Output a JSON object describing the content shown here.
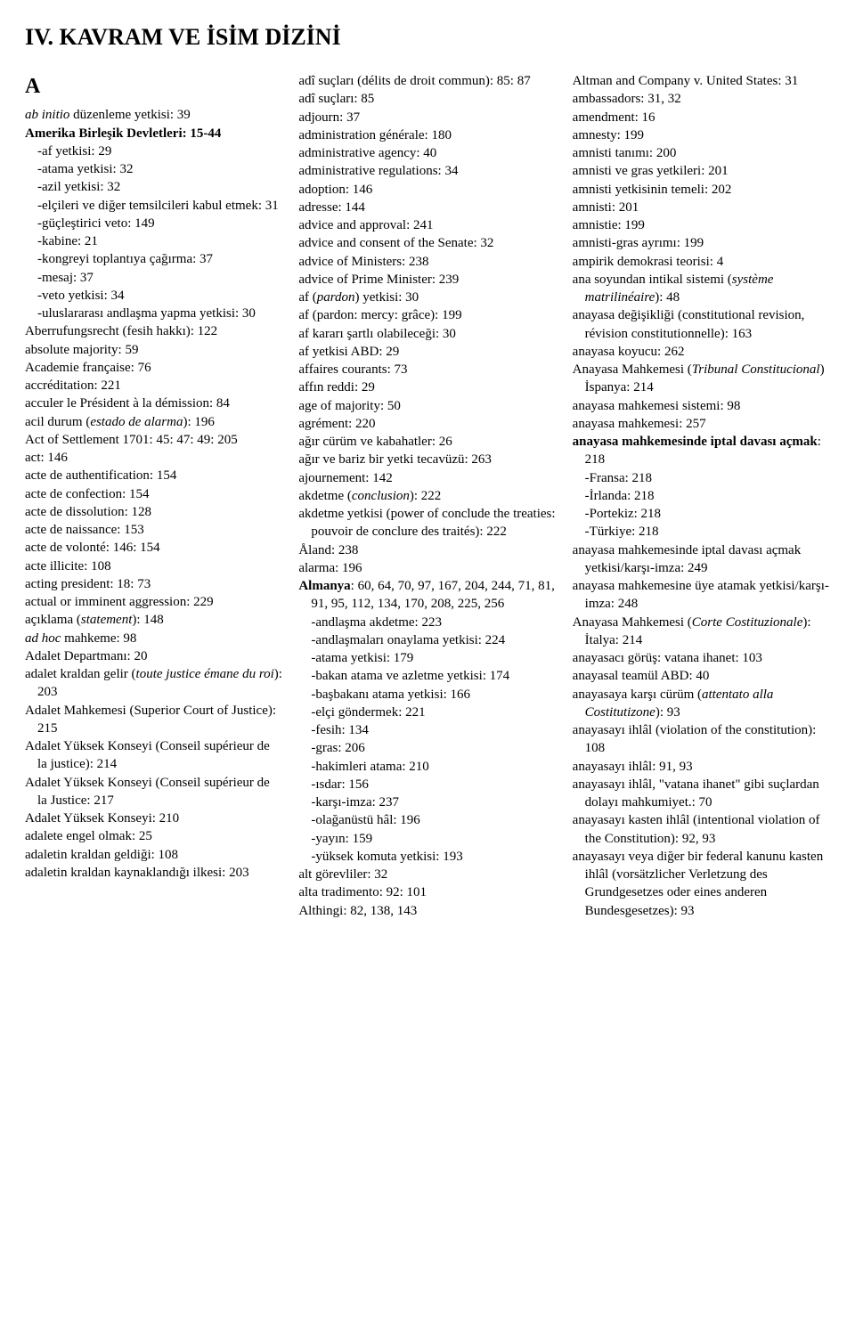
{
  "title": "IV. KAVRAM VE İSİM DİZİNİ",
  "section_letter": "A",
  "col1": [
    {
      "runs": [
        {
          "t": "ab initio",
          "s": "italic"
        },
        {
          "t": " düzenleme yetkisi: 39"
        }
      ]
    },
    {
      "runs": [
        {
          "t": "Amerika Birleşik Devletleri: 15-44",
          "s": "bold"
        }
      ]
    },
    {
      "runs": [
        {
          "t": "-af yetkisi: 29"
        }
      ],
      "sub": true
    },
    {
      "runs": [
        {
          "t": "-atama yetkisi: 32"
        }
      ],
      "sub": true
    },
    {
      "runs": [
        {
          "t": "-azil yetkisi: 32"
        }
      ],
      "sub": true
    },
    {
      "runs": [
        {
          "t": "-elçileri ve diğer temsilcileri kabul etmek: 31"
        }
      ],
      "sub": true
    },
    {
      "runs": [
        {
          "t": "-güçleştirici veto: 149"
        }
      ],
      "sub": true
    },
    {
      "runs": [
        {
          "t": "-kabine: 21"
        }
      ],
      "sub": true
    },
    {
      "runs": [
        {
          "t": "-kongreyi toplantıya çağırma: 37"
        }
      ],
      "sub": true
    },
    {
      "runs": [
        {
          "t": "-mesaj: 37"
        }
      ],
      "sub": true
    },
    {
      "runs": [
        {
          "t": "-veto yetkisi: 34"
        }
      ],
      "sub": true
    },
    {
      "runs": [
        {
          "t": "-uluslararası andlaşma yapma yetkisi: 30"
        }
      ],
      "sub": true
    },
    {
      "runs": [
        {
          "t": "Aberrufungsrecht (fesih hakkı): 122"
        }
      ]
    },
    {
      "runs": [
        {
          "t": "absolute majority: 59"
        }
      ]
    },
    {
      "runs": [
        {
          "t": "Academie française: 76"
        }
      ]
    },
    {
      "runs": [
        {
          "t": "accréditation: 221"
        }
      ]
    },
    {
      "runs": [
        {
          "t": "acculer le Président à la démission: 84"
        }
      ]
    },
    {
      "runs": [
        {
          "t": "acil durum ("
        },
        {
          "t": "estado de alarma",
          "s": "italic"
        },
        {
          "t": "): 196"
        }
      ]
    },
    {
      "runs": [
        {
          "t": "Act of Settlement 1701: 45: 47: 49: 205"
        }
      ]
    },
    {
      "runs": [
        {
          "t": "act: 146"
        }
      ]
    },
    {
      "runs": [
        {
          "t": "acte de authentification: 154"
        }
      ]
    },
    {
      "runs": [
        {
          "t": "acte de confection: 154"
        }
      ]
    },
    {
      "runs": [
        {
          "t": "acte de dissolution: 128"
        }
      ]
    },
    {
      "runs": [
        {
          "t": "acte de naissance: 153"
        }
      ]
    },
    {
      "runs": [
        {
          "t": "acte de volonté: 146: 154"
        }
      ]
    },
    {
      "runs": [
        {
          "t": "acte illicite: 108"
        }
      ]
    },
    {
      "runs": [
        {
          "t": "acting president: 18: 73"
        }
      ]
    },
    {
      "runs": [
        {
          "t": "actual or imminent aggression: 229"
        }
      ]
    },
    {
      "runs": [
        {
          "t": "açıklama ("
        },
        {
          "t": "statement",
          "s": "italic"
        },
        {
          "t": "): 148"
        }
      ]
    },
    {
      "runs": [
        {
          "t": "ad hoc",
          "s": "italic"
        },
        {
          "t": " mahkeme: 98"
        }
      ]
    },
    {
      "runs": [
        {
          "t": "Adalet Departmanı: 20"
        }
      ]
    },
    {
      "runs": [
        {
          "t": "adalet kraldan gelir ("
        },
        {
          "t": "toute justice émane du roi",
          "s": "italic"
        },
        {
          "t": "): 203"
        }
      ]
    },
    {
      "runs": [
        {
          "t": "Adalet Mahkemesi (Superior Court of Justice): 215"
        }
      ]
    },
    {
      "runs": [
        {
          "t": "Adalet Yüksek Konseyi (Conseil supérieur de la justice): 214"
        }
      ]
    },
    {
      "runs": [
        {
          "t": "Adalet Yüksek Konseyi (Conseil supérieur de la Justice: 217"
        }
      ]
    },
    {
      "runs": [
        {
          "t": "Adalet Yüksek Konseyi: 210"
        }
      ]
    },
    {
      "runs": [
        {
          "t": "adalete engel olmak: 25"
        }
      ]
    },
    {
      "runs": [
        {
          "t": "adaletin kraldan geldiği: 108"
        }
      ]
    },
    {
      "runs": [
        {
          "t": "adaletin kraldan kaynaklandığı ilkesi: 203"
        }
      ]
    }
  ],
  "col2": [
    {
      "runs": [
        {
          "t": "adî suçları (délits de droit commun): 85: 87"
        }
      ]
    },
    {
      "runs": [
        {
          "t": "adî suçları: 85"
        }
      ]
    },
    {
      "runs": [
        {
          "t": "adjourn: 37"
        }
      ]
    },
    {
      "runs": [
        {
          "t": "administration générale: 180"
        }
      ]
    },
    {
      "runs": [
        {
          "t": "administrative agency: 40"
        }
      ]
    },
    {
      "runs": [
        {
          "t": "administrative regulations: 34"
        }
      ]
    },
    {
      "runs": [
        {
          "t": "adoption: 146"
        }
      ]
    },
    {
      "runs": [
        {
          "t": "adresse: 144"
        }
      ]
    },
    {
      "runs": [
        {
          "t": "advice and approval: 241"
        }
      ]
    },
    {
      "runs": [
        {
          "t": "advice and consent of the Senate: 32"
        }
      ]
    },
    {
      "runs": [
        {
          "t": "advice of Ministers: 238"
        }
      ]
    },
    {
      "runs": [
        {
          "t": "advice of Prime Minister: 239"
        }
      ]
    },
    {
      "runs": [
        {
          "t": "af ("
        },
        {
          "t": "pardon",
          "s": "italic"
        },
        {
          "t": ") yetkisi: 30"
        }
      ]
    },
    {
      "runs": [
        {
          "t": "af (pardon: mercy: grâce): 199"
        }
      ]
    },
    {
      "runs": [
        {
          "t": "af kararı şartlı olabileceği: 30"
        }
      ]
    },
    {
      "runs": [
        {
          "t": "af yetkisi ABD: 29"
        }
      ]
    },
    {
      "runs": [
        {
          "t": "affaires courants: 73"
        }
      ]
    },
    {
      "runs": [
        {
          "t": "affın reddi: 29"
        }
      ]
    },
    {
      "runs": [
        {
          "t": "age of majority: 50"
        }
      ]
    },
    {
      "runs": [
        {
          "t": "agrément: 220"
        }
      ]
    },
    {
      "runs": [
        {
          "t": "ağır cürüm ve kabahatler: 26"
        }
      ]
    },
    {
      "runs": [
        {
          "t": "ağır ve bariz bir yetki tecavüzü: 263"
        }
      ]
    },
    {
      "runs": [
        {
          "t": "ajournement: 142"
        }
      ]
    },
    {
      "runs": [
        {
          "t": "akdetme ("
        },
        {
          "t": "conclusion",
          "s": "italic"
        },
        {
          "t": "): 222"
        }
      ]
    },
    {
      "runs": [
        {
          "t": "akdetme yetkisi (power of conclude the treaties: pouvoir de conclure des traités): 222"
        }
      ]
    },
    {
      "runs": [
        {
          "t": "Åland: 238"
        }
      ]
    },
    {
      "runs": [
        {
          "t": "alarma: 196"
        }
      ]
    },
    {
      "runs": [
        {
          "t": "Almanya",
          "s": "bold"
        },
        {
          "t": ": 60, 64, 70, 97, 167, 204, 244, 71, 81, 91, 95, 112, 134, 170, 208, 225, 256"
        }
      ]
    },
    {
      "runs": [
        {
          "t": "-andlaşma akdetme: 223"
        }
      ],
      "sub": true
    },
    {
      "runs": [
        {
          "t": "-andlaşmaları onaylama yetkisi: 224"
        }
      ],
      "sub": true
    },
    {
      "runs": [
        {
          "t": "-atama yetkisi: 179"
        }
      ],
      "sub": true
    },
    {
      "runs": [
        {
          "t": "-bakan atama ve azletme yetkisi: 174"
        }
      ],
      "sub": true
    },
    {
      "runs": [
        {
          "t": "-başbakanı atama yetkisi: 166"
        }
      ],
      "sub": true
    },
    {
      "runs": [
        {
          "t": "-elçi göndermek: 221"
        }
      ],
      "sub": true
    },
    {
      "runs": [
        {
          "t": "-fesih: 134"
        }
      ],
      "sub": true
    },
    {
      "runs": [
        {
          "t": "-gras: 206"
        }
      ],
      "sub": true
    },
    {
      "runs": [
        {
          "t": "-hakimleri atama: 210"
        }
      ],
      "sub": true
    },
    {
      "runs": [
        {
          "t": "-ısdar: 156"
        }
      ],
      "sub": true
    },
    {
      "runs": [
        {
          "t": "-karşı-imza: 237"
        }
      ],
      "sub": true
    },
    {
      "runs": [
        {
          "t": "-olağanüstü hâl: 196"
        }
      ],
      "sub": true
    },
    {
      "runs": [
        {
          "t": "-yayın: 159"
        }
      ],
      "sub": true
    },
    {
      "runs": [
        {
          "t": "-yüksek komuta yetkisi: 193"
        }
      ],
      "sub": true
    },
    {
      "runs": [
        {
          "t": "alt görevliler: 32"
        }
      ]
    },
    {
      "runs": [
        {
          "t": "alta tradimento: 92: 101"
        }
      ]
    },
    {
      "runs": [
        {
          "t": "Althingi: 82, 138, 143"
        }
      ]
    }
  ],
  "col3": [
    {
      "runs": [
        {
          "t": "Altman and Company v. United States: 31"
        }
      ]
    },
    {
      "runs": [
        {
          "t": "ambassadors: 31, 32"
        }
      ]
    },
    {
      "runs": [
        {
          "t": "amendment: 16"
        }
      ]
    },
    {
      "runs": [
        {
          "t": "amnesty: 199"
        }
      ]
    },
    {
      "runs": [
        {
          "t": "amnisti tanımı: 200"
        }
      ]
    },
    {
      "runs": [
        {
          "t": "amnisti ve gras yetkileri: 201"
        }
      ]
    },
    {
      "runs": [
        {
          "t": "amnisti yetkisinin temeli: 202"
        }
      ]
    },
    {
      "runs": [
        {
          "t": "amnisti: 201"
        }
      ]
    },
    {
      "runs": [
        {
          "t": "amnistie: 199"
        }
      ]
    },
    {
      "runs": [
        {
          "t": "amnisti-gras ayrımı: 199"
        }
      ]
    },
    {
      "runs": [
        {
          "t": "ampirik demokrasi teorisi: 4"
        }
      ]
    },
    {
      "runs": [
        {
          "t": "ana soyundan intikal sistemi ("
        },
        {
          "t": "système matrilinéaire",
          "s": "italic"
        },
        {
          "t": "): 48"
        }
      ]
    },
    {
      "runs": [
        {
          "t": "anayasa değişikliği (constitutional revision, révision constitutionnelle): 163"
        }
      ]
    },
    {
      "runs": [
        {
          "t": "anayasa koyucu: 262"
        }
      ]
    },
    {
      "runs": [
        {
          "t": "Anayasa Mahkemesi ("
        },
        {
          "t": "Tribunal Constitucional",
          "s": "italic"
        },
        {
          "t": ") İspanya: 214"
        }
      ]
    },
    {
      "runs": [
        {
          "t": "anayasa mahkemesi sistemi: 98"
        }
      ]
    },
    {
      "runs": [
        {
          "t": "anayasa mahkemesi: 257"
        }
      ]
    },
    {
      "runs": [
        {
          "t": "anayasa mahkemesinde iptal davası açmak",
          "s": "bold"
        },
        {
          "t": ": 218"
        }
      ]
    },
    {
      "runs": [
        {
          "t": "-Fransa: 218"
        }
      ],
      "sub": true
    },
    {
      "runs": [
        {
          "t": "-İrlanda: 218"
        }
      ],
      "sub": true
    },
    {
      "runs": [
        {
          "t": "-Portekiz: 218"
        }
      ],
      "sub": true
    },
    {
      "runs": [
        {
          "t": "-Türkiye: 218"
        }
      ],
      "sub": true
    },
    {
      "runs": [
        {
          "t": "anayasa mahkemesinde iptal davası açmak yetkisi/karşı-imza: 249"
        }
      ]
    },
    {
      "runs": [
        {
          "t": "anayasa mahkemesine üye atamak yetkisi/karşı-imza: 248"
        }
      ]
    },
    {
      "runs": [
        {
          "t": "Anayasa Mahkemesi ("
        },
        {
          "t": "Corte Costituzionale",
          "s": "italic"
        },
        {
          "t": "): İtalya: 214"
        }
      ]
    },
    {
      "runs": [
        {
          "t": "anayasacı görüş: vatana ihanet: 103"
        }
      ]
    },
    {
      "runs": [
        {
          "t": "anayasal teamül ABD: 40"
        }
      ]
    },
    {
      "runs": [
        {
          "t": "anayasaya karşı cürüm ("
        },
        {
          "t": "attentato alla Costitutizone",
          "s": "italic"
        },
        {
          "t": "): 93"
        }
      ]
    },
    {
      "runs": [
        {
          "t": "anayasayı ihlâl (violation of the constitution): 108"
        }
      ]
    },
    {
      "runs": [
        {
          "t": "anayasayı ihlâl: 91, 93"
        }
      ]
    },
    {
      "runs": [
        {
          "t": "anayasayı ihlâl, \"vatana ihanet\" gibi suçlardan dolayı mahkumiyet.: 70"
        }
      ]
    },
    {
      "runs": [
        {
          "t": "anayasayı kasten ihlâl (intentional violation of the Constitution): 92, 93"
        }
      ]
    },
    {
      "runs": [
        {
          "t": "anayasayı veya diğer bir federal kanunu kasten ihlâl (vorsätzlicher Verletzung des Grundgesetzes oder eines anderen Bundesgesetzes): 93"
        }
      ]
    }
  ]
}
